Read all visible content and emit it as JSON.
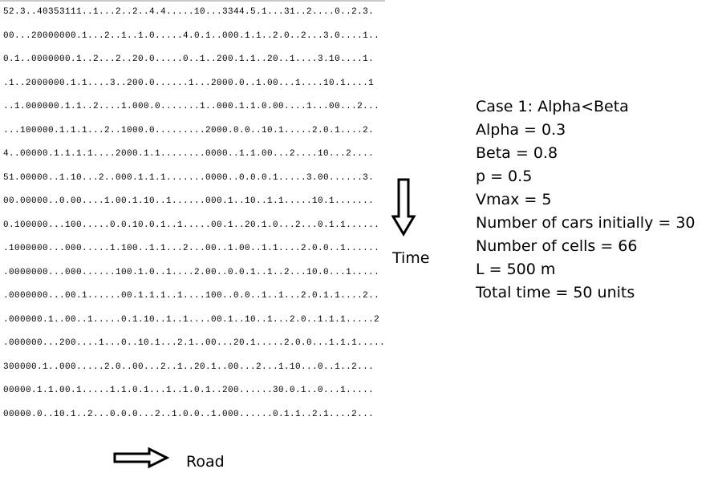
{
  "grid_lines": [
    "52.3..40353111..1...2..2..4.4.....10...3344.5.1...31..2....0..2.3.",
    "00...20000000.1...2..1..1.0.....4.0.1..000.1.1..2.0..2...3.0....1..",
    "0.1..0000000.1..2...2..20.0.....0..1..200.1.1..20..1....3.10....1.",
    ".1..2000000.1.1....3..200.0......1...2000.0..1.00...1....10.1....1",
    "..1.000000.1.1..2....1.000.0.......1..000.1.1.0.00....1...00...2...",
    "...100000.1.1.1...2..1000.0.........2000.0.0..10.1.....2.0.1....2.",
    "4..00000.1.1.1.1....2000.1.1........0000..1.1.00...2....10...2....",
    "51.00000..1.10...2..000.1.1.1.......0000..0.0.0.1.....3.00......3.",
    "00.00000..0.00....1.00.1.10..1......000.1..10..1.1.....10.1.......",
    "0.100000...100.....0.0.10.0.1..1.....00.1..20.1.0...2...0.1.1......",
    ".1000000...000.....1.100..1.1...2...00..1.00..1.1....2.0.0..1......",
    ".0000000...000......100.1.0..1....2.00..0.0.1..1..2...10.0...1.....",
    ".0000000...00.1......00.1.1.1..1....100..0.0..1..1...2.0.1.1....2..",
    ".000000.1..00..1.....0.1.10..1..1....00.1..10..1...2.0..1.1.1.....2",
    ".000000...200....1...0..10.1...2.1..00...20.1.....2.0.0...1.1.1.....",
    "300000.1..000.....2.0..00...2..1..20.1..00...2...1.10...0..1..2...",
    "00000.1.1.00.1.....1.1.0.1...1..1.0.1..200......30.0.1..0...1.....",
    "00000.0..10.1..2...0.0.0...2..1.0.0..1.000......0.1.1..2.1....2..."
  ],
  "time_label": "Time",
  "road_label": "Road",
  "parameters": [
    "Case 1: Alpha<Beta",
    "Alpha = 0.3",
    "Beta = 0.8",
    "p = 0.5",
    "Vmax = 5",
    "Number of cars initially = 30",
    "Number of cells = 66",
    "L = 500 m",
    "Total time = 50 units"
  ]
}
